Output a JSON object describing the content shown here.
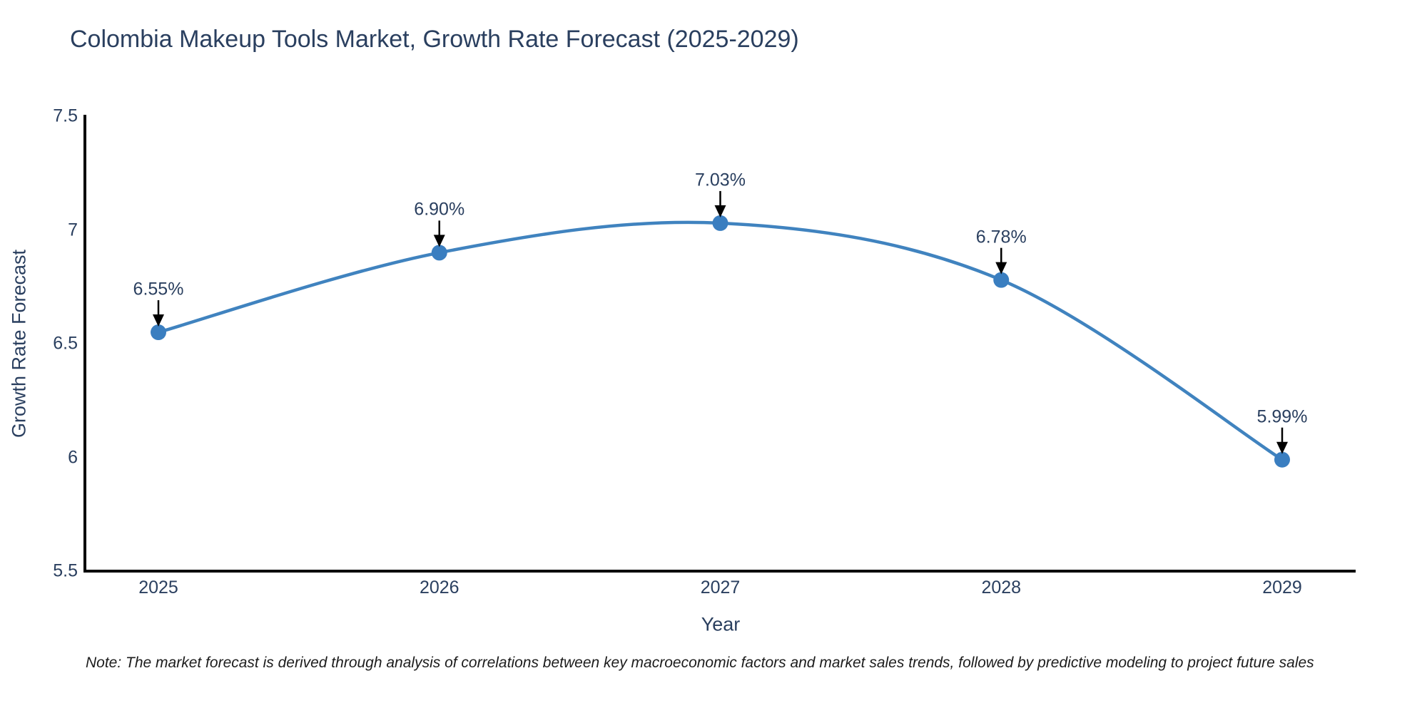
{
  "chart": {
    "note": "Note: The market forecast is derived through analysis of correlations between key macroeconomic factors and market sales trends, followed by predictive modeling to project future sales"
  },
  "chart_data": {
    "type": "line",
    "title": "Colombia Makeup Tools Market, Growth Rate Forecast (2025-2029)",
    "categories": [
      "2025",
      "2026",
      "2027",
      "2028",
      "2029"
    ],
    "values": [
      6.55,
      6.9,
      7.03,
      6.78,
      5.99
    ],
    "point_labels": [
      "6.55%",
      "6.90%",
      "7.03%",
      "6.78%",
      "5.99%"
    ],
    "xlabel": "Year",
    "ylabel": "Growth Rate Forecast",
    "ylim": [
      5.5,
      7.5
    ],
    "yticks": [
      {
        "value": 7.5,
        "label": "7.5"
      },
      {
        "value": 7.0,
        "label": "7"
      },
      {
        "value": 6.5,
        "label": "6.5"
      },
      {
        "value": 6.0,
        "label": "6"
      },
      {
        "value": 5.5,
        "label": "5.5"
      }
    ],
    "grid": false,
    "legend_position": "none",
    "curve": "spline",
    "colors": {
      "line": "#4083bf",
      "marker": "#3a7ec0",
      "axis": "#000000",
      "text": "#2a3f5f",
      "arrow": "#000000"
    }
  }
}
